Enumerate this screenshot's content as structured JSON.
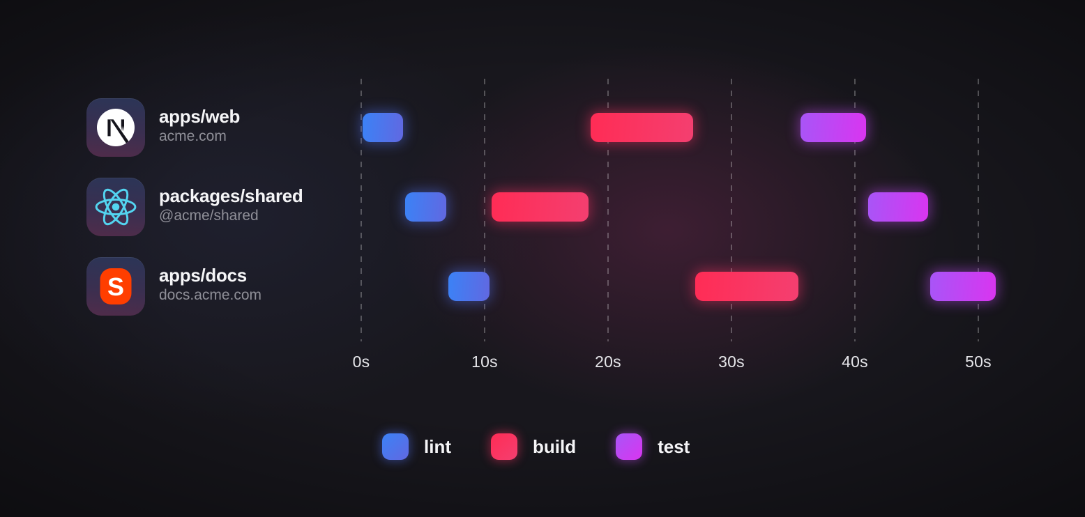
{
  "rows": [
    {
      "name": "apps/web",
      "subtitle": "acme.com",
      "icon": "nextjs-logo"
    },
    {
      "name": "packages/shared",
      "subtitle": "@acme/shared",
      "icon": "react-logo"
    },
    {
      "name": "apps/docs",
      "subtitle": "docs.acme.com",
      "icon": "svelte-logo"
    }
  ],
  "chart_data": {
    "type": "bar",
    "variant": "gantt-timeline",
    "unit": "seconds",
    "rows": [
      "apps/web",
      "packages/shared",
      "apps/docs"
    ],
    "x_ticks": [
      {
        "value": 0,
        "label": "0s"
      },
      {
        "value": 10,
        "label": "10s"
      },
      {
        "value": 20,
        "label": "20s"
      },
      {
        "value": 30,
        "label": "30s"
      },
      {
        "value": 40,
        "label": "40s"
      },
      {
        "value": 50,
        "label": "50s"
      }
    ],
    "xlim": [
      0,
      52
    ],
    "grid": "dashed-vertical",
    "legend_position": "bottom-center",
    "tasks": [
      {
        "row": "apps/web",
        "type": "lint",
        "start": 0,
        "end": 3.5
      },
      {
        "row": "packages/shared",
        "type": "lint",
        "start": 3.5,
        "end": 7
      },
      {
        "row": "apps/docs",
        "type": "lint",
        "start": 7,
        "end": 10.5
      },
      {
        "row": "packages/shared",
        "type": "build",
        "start": 10.5,
        "end": 18.5
      },
      {
        "row": "apps/web",
        "type": "build",
        "start": 18.5,
        "end": 27
      },
      {
        "row": "apps/docs",
        "type": "build",
        "start": 27,
        "end": 35.5
      },
      {
        "row": "apps/web",
        "type": "test",
        "start": 35.5,
        "end": 41
      },
      {
        "row": "packages/shared",
        "type": "test",
        "start": 41,
        "end": 46
      },
      {
        "row": "apps/docs",
        "type": "test",
        "start": 46,
        "end": 51.5
      }
    ]
  },
  "legend": {
    "items": [
      {
        "label": "lint",
        "color_start": "#3b82f6",
        "color_end": "#6168e1"
      },
      {
        "label": "build",
        "color_start": "#ff2c55",
        "color_end": "#f43f70"
      },
      {
        "label": "test",
        "color_start": "#a855f7",
        "color_end": "#d935f0"
      }
    ]
  }
}
